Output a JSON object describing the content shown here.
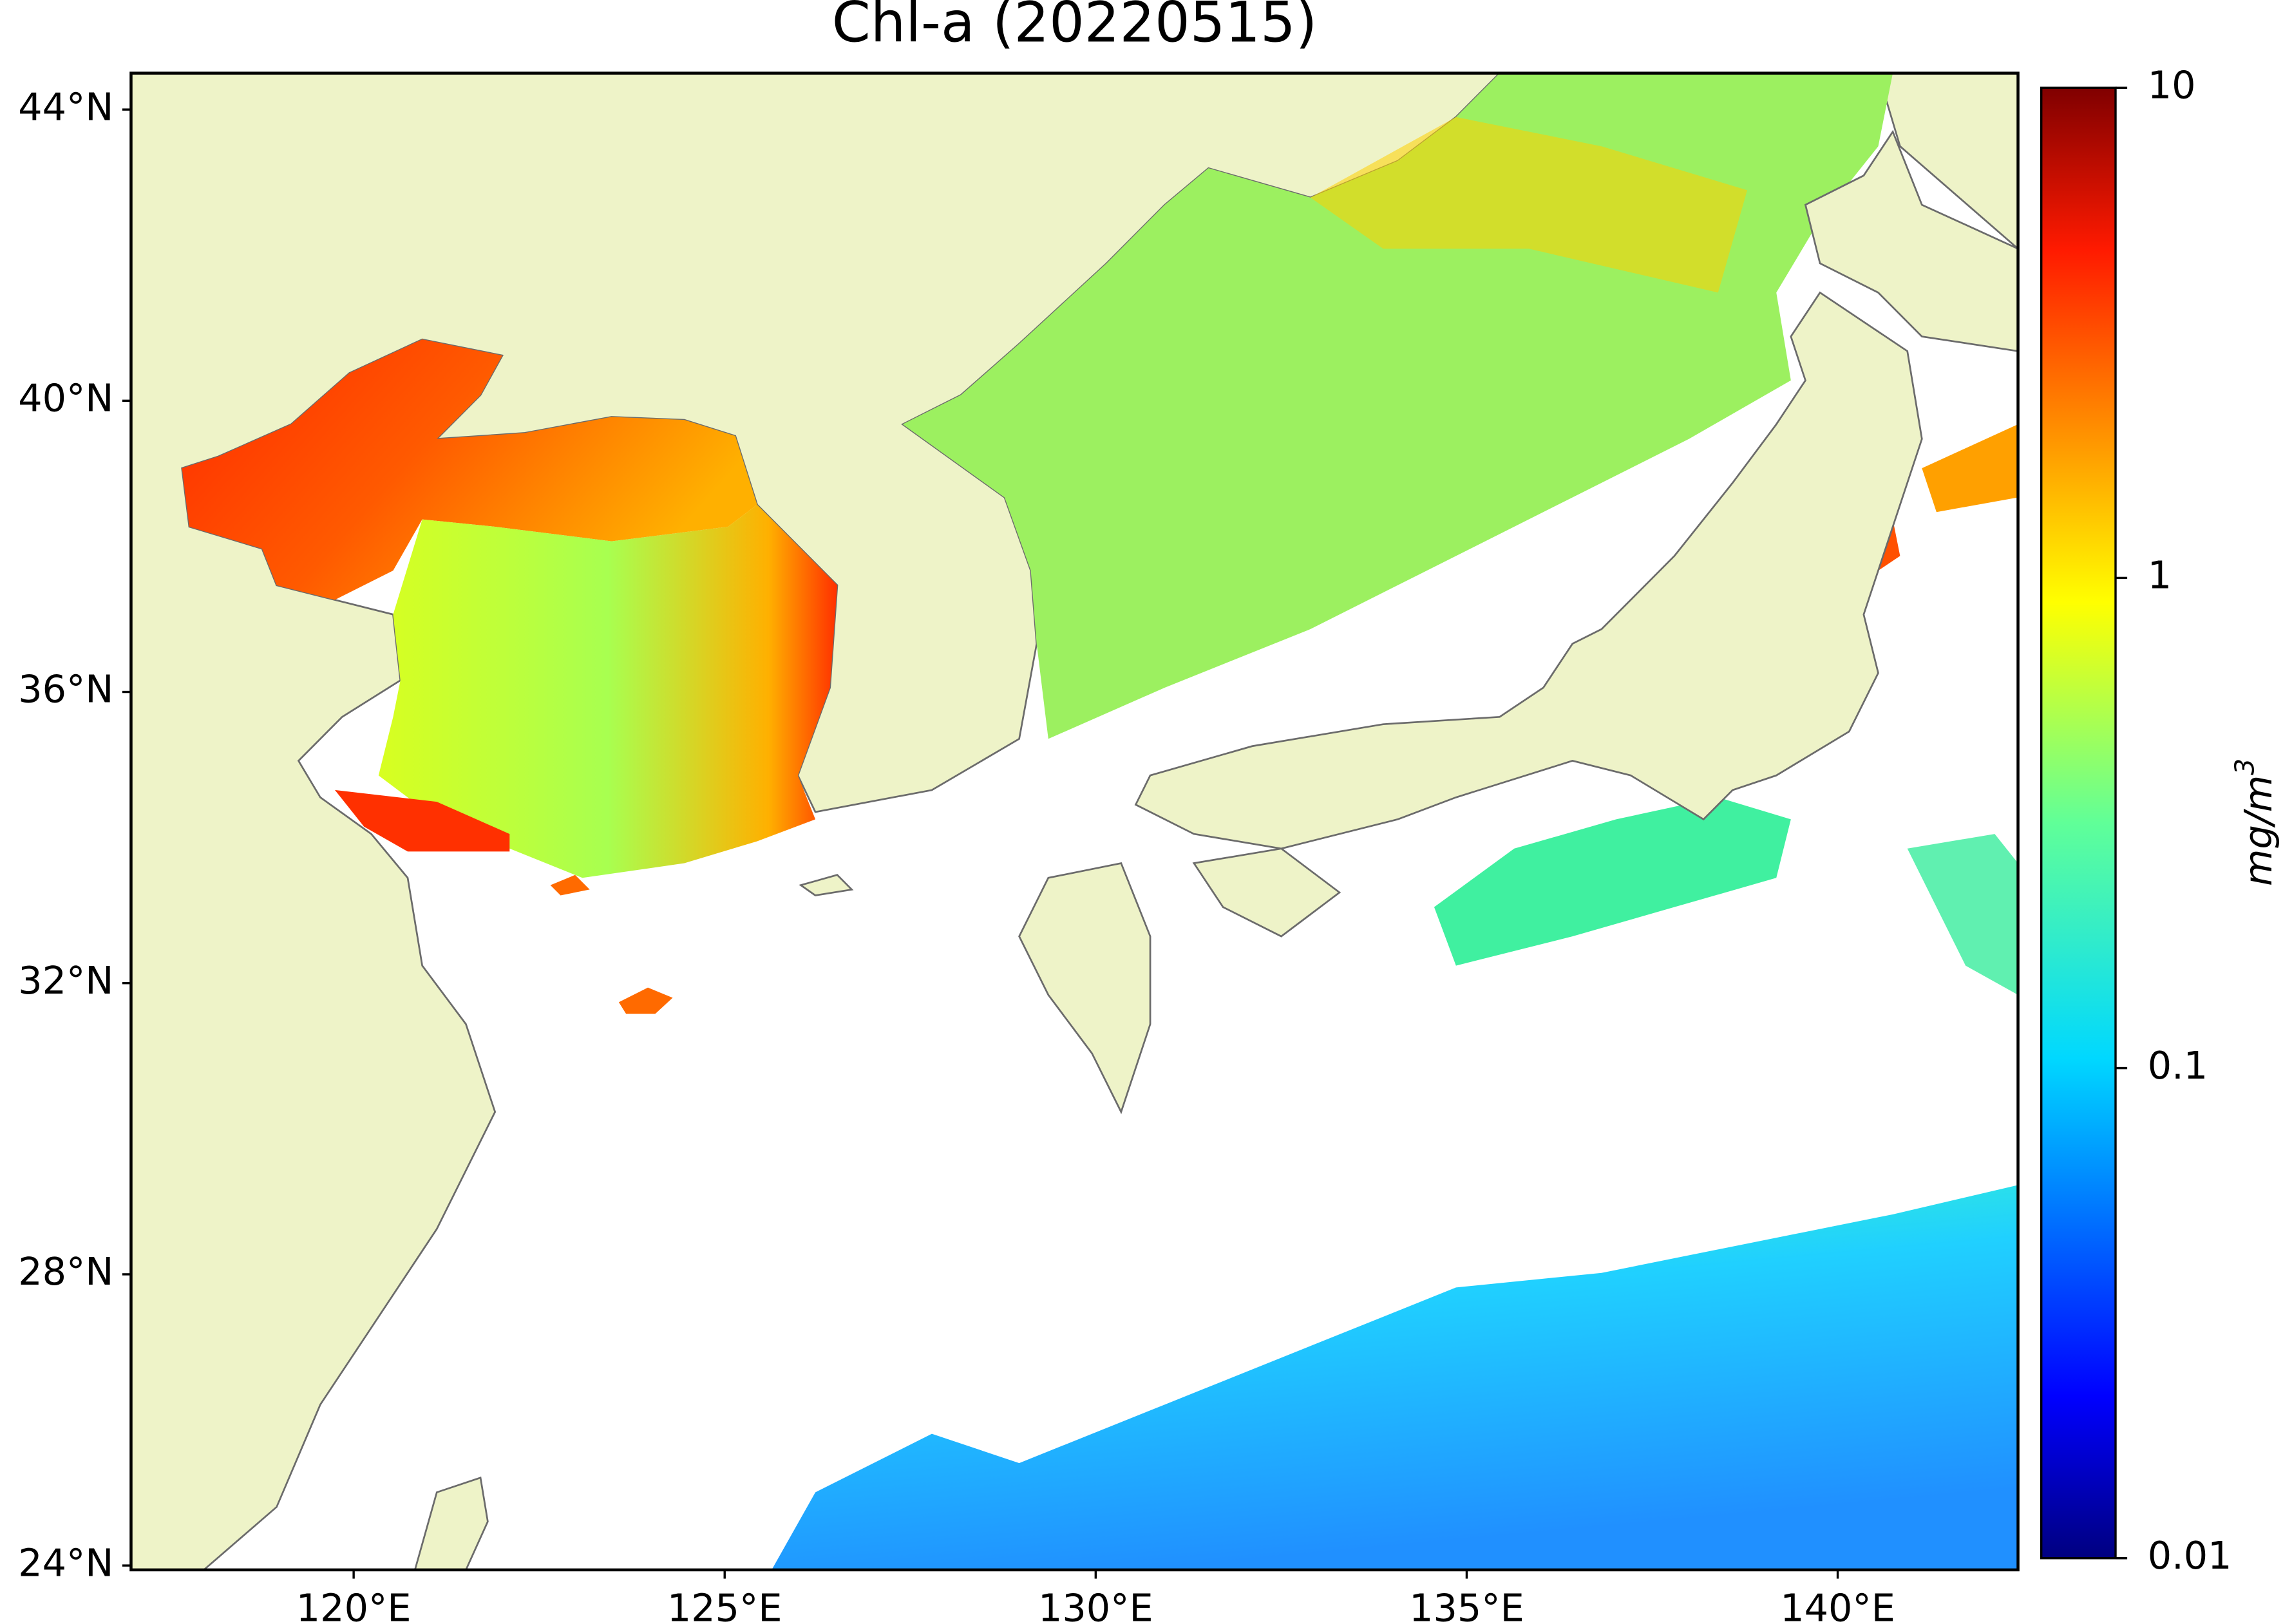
{
  "map": {
    "title": "Chl-a (20220515)",
    "xlim": [
      117,
      142.43
    ],
    "ylim": [
      23.94,
      44.5
    ],
    "xticks": [
      {
        "value": 120,
        "label": "120°E"
      },
      {
        "value": 125,
        "label": "125°E"
      },
      {
        "value": 130,
        "label": "130°E"
      },
      {
        "value": 135,
        "label": "135°E"
      },
      {
        "value": 140,
        "label": "140°E"
      }
    ],
    "yticks": [
      {
        "value": 24,
        "label": "24°N"
      },
      {
        "value": 28,
        "label": "28°N"
      },
      {
        "value": 32,
        "label": "32°N"
      },
      {
        "value": 36,
        "label": "36°N"
      },
      {
        "value": 40,
        "label": "40°N"
      },
      {
        "value": 44,
        "label": "44°N"
      }
    ],
    "colorbar": {
      "colormap": "jet",
      "log_scale": true,
      "lim": [
        0.01,
        10
      ],
      "ticks": [
        0.01,
        0.1,
        1,
        10
      ],
      "label_base": "mg/m",
      "label_exponent": "3"
    }
  }
}
